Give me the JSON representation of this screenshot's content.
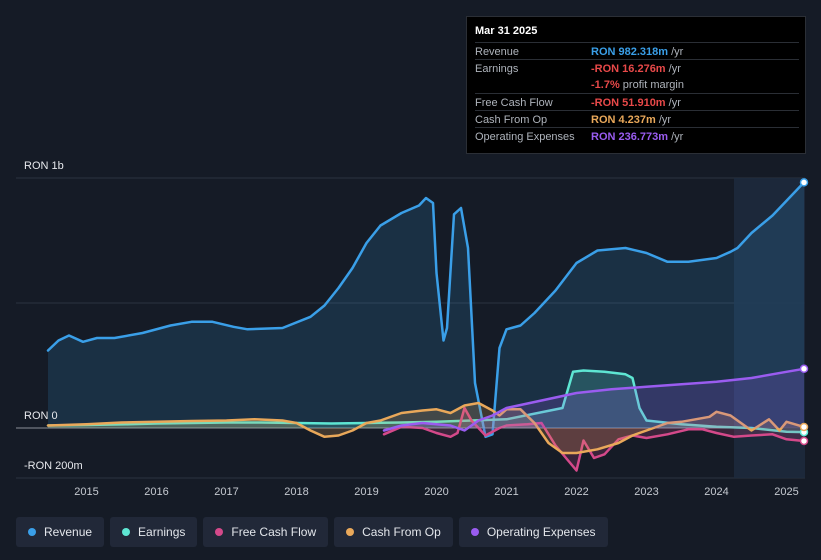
{
  "chart_data": {
    "type": "area",
    "title": "",
    "currency_unit": "RON",
    "y_axis_labels": {
      "top": "RON 1b",
      "zero": "RON 0",
      "bottom": "-RON 200m"
    },
    "ylim": [
      -200,
      1000
    ],
    "xlim": [
      2014.45,
      2025.25
    ],
    "x_ticks": [
      "2015",
      "2016",
      "2017",
      "2018",
      "2019",
      "2020",
      "2021",
      "2022",
      "2023",
      "2024",
      "2025"
    ],
    "highlight_from": 2024.25,
    "series": [
      {
        "name": "Revenue",
        "color": "#3a9fe8",
        "fill": true,
        "x": [
          2014.45,
          2014.6,
          2014.75,
          2014.95,
          2015.15,
          2015.4,
          2015.8,
          2016.2,
          2016.5,
          2016.8,
          2017.1,
          2017.3,
          2017.8,
          2018.2,
          2018.4,
          2018.6,
          2018.8,
          2019.0,
          2019.2,
          2019.5,
          2019.75,
          2019.85,
          2019.95,
          2020.0,
          2020.1,
          2020.15,
          2020.25,
          2020.35,
          2020.45,
          2020.55,
          2020.7,
          2020.8,
          2020.9,
          2021.0,
          2021.2,
          2021.4,
          2021.7,
          2022.0,
          2022.3,
          2022.7,
          2023.0,
          2023.3,
          2023.6,
          2024.0,
          2024.2,
          2024.3,
          2024.5,
          2024.8,
          2025.25
        ],
        "values": [
          310,
          350,
          370,
          345,
          360,
          360,
          380,
          410,
          425,
          425,
          405,
          395,
          400,
          445,
          490,
          560,
          640,
          740,
          810,
          860,
          890,
          920,
          900,
          620,
          350,
          400,
          855,
          880,
          720,
          180,
          -35,
          -25,
          320,
          395,
          410,
          460,
          550,
          660,
          710,
          720,
          700,
          665,
          665,
          680,
          705,
          720,
          780,
          850,
          982.3
        ]
      },
      {
        "name": "Earnings",
        "color": "#5ee6d3",
        "fill": true,
        "x": [
          2014.45,
          2015.0,
          2015.6,
          2016.0,
          2016.5,
          2017.0,
          2017.5,
          2018.0,
          2018.5,
          2019.0,
          2019.5,
          2020.0,
          2020.5,
          2021.0,
          2021.8,
          2021.95,
          2022.1,
          2022.4,
          2022.7,
          2022.8,
          2022.9,
          2023.0,
          2023.5,
          2024.0,
          2024.5,
          2025.0,
          2025.25
        ],
        "values": [
          10,
          12,
          15,
          18,
          20,
          22,
          22,
          20,
          18,
          20,
          22,
          25,
          30,
          35,
          80,
          225,
          230,
          225,
          215,
          200,
          80,
          30,
          15,
          5,
          0,
          -15,
          -16.3
        ]
      },
      {
        "name": "Free Cash Flow",
        "color": "#d4498a",
        "fill": true,
        "x": [
          2019.25,
          2019.5,
          2019.8,
          2020.0,
          2020.2,
          2020.3,
          2020.4,
          2020.5,
          2020.7,
          2020.9,
          2021.0,
          2021.3,
          2021.5,
          2021.7,
          2021.85,
          2022.0,
          2022.1,
          2022.25,
          2022.4,
          2022.6,
          2022.8,
          2023.0,
          2023.3,
          2023.6,
          2023.8,
          2024.0,
          2024.25,
          2024.5,
          2024.8,
          2025.0,
          2025.25
        ],
        "values": [
          -25,
          5,
          0,
          -20,
          -35,
          -20,
          80,
          30,
          -30,
          0,
          10,
          15,
          20,
          -70,
          -120,
          -170,
          -50,
          -120,
          -105,
          -45,
          -30,
          -40,
          -25,
          -5,
          -5,
          -20,
          -35,
          -30,
          -25,
          -45,
          -51.9
        ]
      },
      {
        "name": "Cash From Op",
        "color": "#e9a85a",
        "fill": true,
        "x": [
          2014.45,
          2015.0,
          2015.5,
          2016.0,
          2016.5,
          2017.0,
          2017.4,
          2017.8,
          2018.0,
          2018.2,
          2018.4,
          2018.6,
          2018.8,
          2019.0,
          2019.2,
          2019.5,
          2019.8,
          2020.0,
          2020.2,
          2020.4,
          2020.6,
          2020.8,
          2020.9,
          2021.0,
          2021.2,
          2021.4,
          2021.6,
          2021.8,
          2022.0,
          2022.3,
          2022.6,
          2022.8,
          2023.0,
          2023.3,
          2023.5,
          2023.7,
          2023.9,
          2024.0,
          2024.2,
          2024.5,
          2024.75,
          2024.9,
          2025.0,
          2025.25
        ],
        "values": [
          10,
          15,
          22,
          25,
          28,
          30,
          35,
          30,
          20,
          -10,
          -35,
          -30,
          -10,
          20,
          30,
          60,
          70,
          75,
          60,
          90,
          100,
          70,
          50,
          75,
          75,
          20,
          -60,
          -100,
          -100,
          -85,
          -60,
          -30,
          -10,
          20,
          25,
          35,
          45,
          65,
          50,
          -10,
          35,
          -10,
          25,
          4.2
        ]
      },
      {
        "name": "Operating Expenses",
        "color": "#9a5cf0",
        "fill": true,
        "x": [
          2019.25,
          2019.5,
          2019.8,
          2020.0,
          2020.2,
          2020.4,
          2020.6,
          2020.8,
          2021.0,
          2021.5,
          2022.0,
          2022.5,
          2023.0,
          2023.5,
          2024.0,
          2024.5,
          2025.0,
          2025.25
        ],
        "values": [
          -10,
          10,
          20,
          15,
          10,
          -10,
          30,
          50,
          80,
          110,
          140,
          155,
          165,
          175,
          185,
          200,
          225,
          236.8
        ]
      }
    ],
    "tooltip": {
      "date": "Mar 31 2025",
      "rows": [
        {
          "label": "Revenue",
          "value": "RON 982.318m",
          "unit": " /yr",
          "color": "#3a9fe8"
        },
        {
          "label": "Earnings",
          "value": "-RON 16.276m",
          "unit": " /yr",
          "color": "#e84949"
        },
        {
          "label": "",
          "value": "-1.7%",
          "unit": " profit margin",
          "color": "#e84949"
        },
        {
          "label": "Free Cash Flow",
          "value": "-RON 51.910m",
          "unit": " /yr",
          "color": "#e84949"
        },
        {
          "label": "Cash From Op",
          "value": "RON 4.237m",
          "unit": " /yr",
          "color": "#e9a85a"
        },
        {
          "label": "Operating Expenses",
          "value": "RON 236.773m",
          "unit": " /yr",
          "color": "#9a5cf0"
        }
      ]
    }
  },
  "legend": [
    {
      "label": "Revenue",
      "color": "#3a9fe8"
    },
    {
      "label": "Earnings",
      "color": "#5ee6d3"
    },
    {
      "label": "Free Cash Flow",
      "color": "#d4498a"
    },
    {
      "label": "Cash From Op",
      "color": "#e9a85a"
    },
    {
      "label": "Operating Expenses",
      "color": "#9a5cf0"
    }
  ]
}
